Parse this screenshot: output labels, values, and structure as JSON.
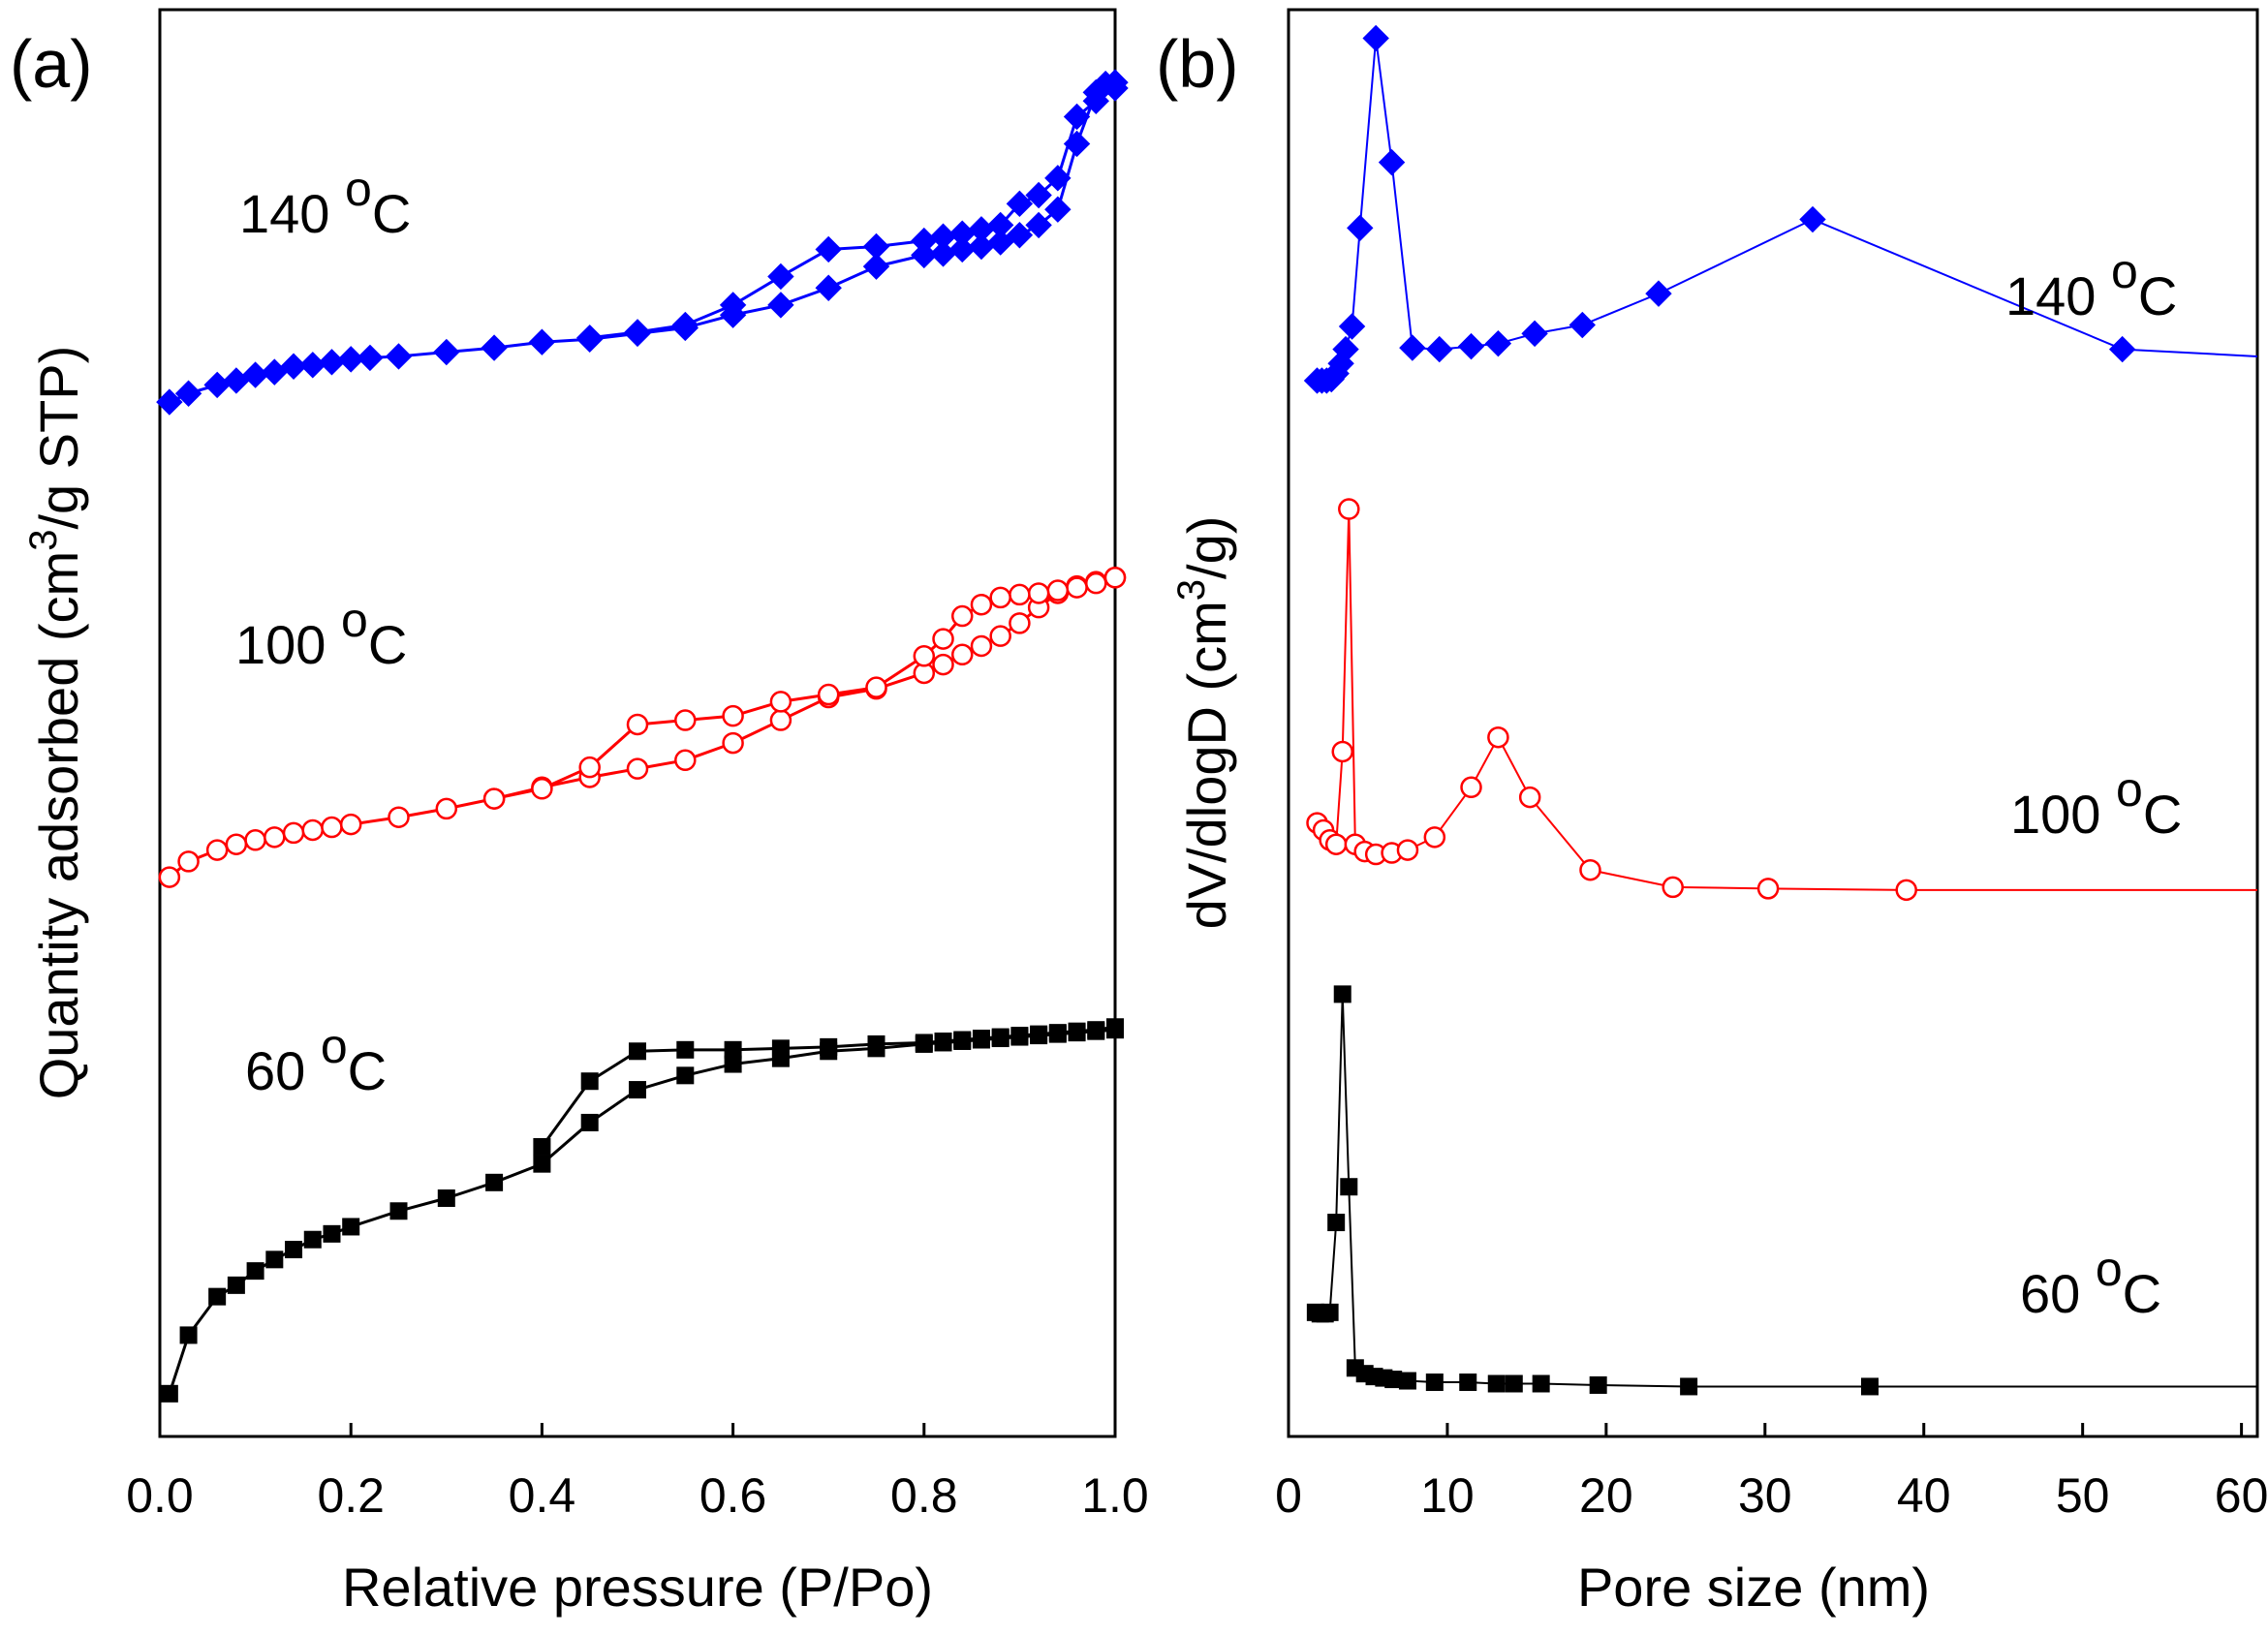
{
  "panels": [
    {
      "label": "(a)"
    },
    {
      "label": "(b)"
    }
  ],
  "series_labels": {
    "s140": {
      "value": "140 ",
      "sup": "o",
      "unit": "C"
    },
    "s100": {
      "value": "100 ",
      "sup": "o",
      "unit": "C"
    },
    "s60": {
      "value": "60 ",
      "sup": "o",
      "unit": "C"
    }
  },
  "chart_data": [
    {
      "type": "line",
      "xlabel": "Relative pressure (P/Po)",
      "ylabel": {
        "pre": "Quantity adsorbed (cm",
        "sup": "3",
        "post": "/g STP)"
      },
      "xlim": [
        0,
        1.0
      ],
      "ylim": [
        0,
        1000
      ],
      "xticks": [
        "0.0",
        "0.2",
        "0.4",
        "0.6",
        "0.8",
        "1.0"
      ],
      "xtick_values": [
        0,
        0.2,
        0.4,
        0.6,
        0.8,
        1.0
      ],
      "y_tick_labels": false,
      "grid": false,
      "series": [
        {
          "key": "s140",
          "color": "#0000ff",
          "marker": "diamond",
          "adsorption": [
            [
              0.01,
              725
            ],
            [
              0.03,
              731
            ],
            [
              0.06,
              737
            ],
            [
              0.08,
              740
            ],
            [
              0.1,
              744
            ],
            [
              0.12,
              746
            ],
            [
              0.14,
              750
            ],
            [
              0.16,
              751
            ],
            [
              0.18,
              753
            ],
            [
              0.2,
              755
            ],
            [
              0.22,
              756
            ],
            [
              0.25,
              757
            ],
            [
              0.3,
              760
            ],
            [
              0.35,
              763
            ],
            [
              0.4,
              767
            ],
            [
              0.45,
              769
            ],
            [
              0.5,
              773
            ],
            [
              0.55,
              777
            ],
            [
              0.6,
              786
            ],
            [
              0.65,
              793
            ],
            [
              0.7,
              805
            ],
            [
              0.75,
              820
            ],
            [
              0.8,
              828
            ],
            [
              0.82,
              829
            ],
            [
              0.84,
              832
            ],
            [
              0.86,
              834
            ],
            [
              0.88,
              837
            ],
            [
              0.9,
              842
            ],
            [
              0.92,
              849
            ],
            [
              0.94,
              860
            ],
            [
              0.96,
              906
            ],
            [
              0.98,
              942
            ],
            [
              0.99,
              948
            ],
            [
              1.0,
              949
            ]
          ],
          "desorption": [
            [
              1.0,
              945
            ],
            [
              0.98,
              936
            ],
            [
              0.96,
              925
            ],
            [
              0.94,
              882
            ],
            [
              0.92,
              870
            ],
            [
              0.9,
              864
            ],
            [
              0.88,
              849
            ],
            [
              0.86,
              846
            ],
            [
              0.84,
              843
            ],
            [
              0.82,
              841
            ],
            [
              0.8,
              838
            ],
            [
              0.75,
              834
            ],
            [
              0.7,
              832
            ],
            [
              0.65,
              813
            ],
            [
              0.6,
              793
            ],
            [
              0.55,
              779
            ],
            [
              0.5,
              774
            ],
            [
              0.45,
              770
            ]
          ]
        },
        {
          "key": "s100",
          "color": "#ff0000",
          "marker": "open-circle",
          "adsorption": [
            [
              0.01,
              392
            ],
            [
              0.03,
              403
            ],
            [
              0.06,
              411
            ],
            [
              0.08,
              415
            ],
            [
              0.1,
              418
            ],
            [
              0.12,
              420
            ],
            [
              0.14,
              423
            ],
            [
              0.16,
              425
            ],
            [
              0.18,
              427
            ],
            [
              0.2,
              429
            ],
            [
              0.25,
              434
            ],
            [
              0.3,
              440
            ],
            [
              0.35,
              447
            ],
            [
              0.4,
              455
            ],
            [
              0.45,
              462
            ],
            [
              0.5,
              468
            ],
            [
              0.55,
              474
            ],
            [
              0.6,
              486
            ],
            [
              0.65,
              502
            ],
            [
              0.7,
              518
            ],
            [
              0.75,
              524
            ],
            [
              0.8,
              535
            ],
            [
              0.82,
              541
            ],
            [
              0.84,
              548
            ],
            [
              0.86,
              554
            ],
            [
              0.88,
              561
            ],
            [
              0.9,
              570
            ],
            [
              0.92,
              581
            ],
            [
              0.94,
              591
            ],
            [
              0.96,
              596
            ],
            [
              0.98,
              599
            ],
            [
              1.0,
              602
            ]
          ],
          "desorption": [
            [
              1.0,
              602
            ],
            [
              0.98,
              598
            ],
            [
              0.96,
              595
            ],
            [
              0.94,
              593
            ],
            [
              0.92,
              591
            ],
            [
              0.9,
              590
            ],
            [
              0.88,
              588
            ],
            [
              0.86,
              583
            ],
            [
              0.84,
              575
            ],
            [
              0.82,
              559
            ],
            [
              0.8,
              547
            ],
            [
              0.75,
              525
            ],
            [
              0.7,
              520
            ],
            [
              0.65,
              515
            ],
            [
              0.6,
              505
            ],
            [
              0.55,
              502
            ],
            [
              0.5,
              499
            ],
            [
              0.45,
              469
            ],
            [
              0.4,
              454
            ],
            [
              0.35,
              447
            ]
          ]
        },
        {
          "key": "s60",
          "color": "#000000",
          "marker": "square",
          "adsorption": [
            [
              0.01,
              30
            ],
            [
              0.03,
              71
            ],
            [
              0.06,
              98
            ],
            [
              0.08,
              106
            ],
            [
              0.1,
              116
            ],
            [
              0.12,
              124
            ],
            [
              0.14,
              131
            ],
            [
              0.16,
              138
            ],
            [
              0.18,
              142
            ],
            [
              0.2,
              147
            ],
            [
              0.25,
              158
            ],
            [
              0.3,
              167
            ],
            [
              0.35,
              178
            ],
            [
              0.4,
              191
            ],
            [
              0.45,
              220
            ],
            [
              0.5,
              243
            ],
            [
              0.55,
              253
            ],
            [
              0.6,
              261
            ],
            [
              0.65,
              265
            ],
            [
              0.7,
              270
            ],
            [
              0.75,
              272
            ],
            [
              0.8,
              275
            ],
            [
              0.82,
              276
            ],
            [
              0.84,
              277
            ],
            [
              0.86,
              278
            ],
            [
              0.88,
              279
            ],
            [
              0.9,
              280
            ],
            [
              0.92,
              281
            ],
            [
              0.94,
              282
            ],
            [
              0.96,
              283
            ],
            [
              0.98,
              284
            ],
            [
              1.0,
              285
            ]
          ],
          "desorption": [
            [
              1.0,
              287
            ],
            [
              0.98,
              285
            ],
            [
              0.96,
              284
            ],
            [
              0.94,
              283
            ],
            [
              0.92,
              282
            ],
            [
              0.9,
              281
            ],
            [
              0.88,
              280
            ],
            [
              0.86,
              279
            ],
            [
              0.84,
              278
            ],
            [
              0.82,
              277
            ],
            [
              0.8,
              276
            ],
            [
              0.75,
              275
            ],
            [
              0.7,
              273
            ],
            [
              0.65,
              272
            ],
            [
              0.6,
              271
            ],
            [
              0.55,
              271
            ],
            [
              0.5,
              270
            ],
            [
              0.45,
              249
            ],
            [
              0.4,
              203
            ]
          ]
        }
      ]
    },
    {
      "type": "line",
      "xlabel": "Pore size (nm)",
      "ylabel": {
        "pre": "dV/dlogD (cm",
        "sup": "3",
        "post": "/g)"
      },
      "xlim": [
        0,
        61
      ],
      "ylim": [
        0,
        1000
      ],
      "xticks": [
        "0",
        "10",
        "20",
        "30",
        "40",
        "50",
        "60"
      ],
      "xtick_values": [
        0,
        10,
        20,
        30,
        40,
        50,
        60
      ],
      "y_tick_labels": false,
      "grid": false,
      "series": [
        {
          "key": "s140",
          "color": "#0000ff",
          "marker": "diamond",
          "points": [
            [
              1.8,
              740
            ],
            [
              2.1,
              740
            ],
            [
              2.4,
              740
            ],
            [
              2.7,
              741
            ],
            [
              3.0,
              745
            ],
            [
              3.3,
              752
            ],
            [
              3.6,
              762
            ],
            [
              4.0,
              778
            ],
            [
              4.5,
              847
            ],
            [
              5.5,
              980
            ],
            [
              6.5,
              893
            ],
            [
              7.8,
              763
            ],
            [
              9.5,
              762
            ],
            [
              11.5,
              764
            ],
            [
              13.2,
              766
            ],
            [
              15.5,
              773
            ],
            [
              18.5,
              779
            ],
            [
              23.3,
              801
            ],
            [
              33,
              853
            ],
            [
              52.5,
              762
            ],
            [
              61,
              757
            ]
          ]
        },
        {
          "key": "s100",
          "color": "#ff0000",
          "marker": "open-circle",
          "points": [
            [
              1.8,
              430
            ],
            [
              2.2,
              425
            ],
            [
              2.6,
              418
            ],
            [
              3.0,
              415
            ],
            [
              3.4,
              480
            ],
            [
              3.8,
              650
            ],
            [
              4.2,
              415
            ],
            [
              4.8,
              410
            ],
            [
              5.5,
              408
            ],
            [
              6.5,
              409
            ],
            [
              7.5,
              411
            ],
            [
              9.2,
              420
            ],
            [
              11.5,
              455
            ],
            [
              13.2,
              490
            ],
            [
              15.2,
              448
            ],
            [
              19.0,
              397
            ],
            [
              24.2,
              385
            ],
            [
              30.2,
              384
            ],
            [
              38.9,
              383
            ],
            [
              61,
              383
            ]
          ]
        },
        {
          "key": "s60",
          "color": "#000000",
          "marker": "square",
          "points": [
            [
              1.7,
              87
            ],
            [
              2.0,
              86
            ],
            [
              2.3,
              86
            ],
            [
              2.6,
              87
            ],
            [
              3.0,
              150
            ],
            [
              3.4,
              310
            ],
            [
              3.8,
              175
            ],
            [
              4.2,
              48
            ],
            [
              4.8,
              44
            ],
            [
              5.4,
              42
            ],
            [
              6.0,
              41
            ],
            [
              6.6,
              40
            ],
            [
              7.5,
              39
            ],
            [
              9.2,
              38
            ],
            [
              11.3,
              38
            ],
            [
              13.1,
              37
            ],
            [
              14.2,
              37
            ],
            [
              15.9,
              37
            ],
            [
              19.5,
              36
            ],
            [
              25.2,
              35
            ],
            [
              36.6,
              35
            ],
            [
              61,
              35
            ]
          ]
        }
      ]
    }
  ]
}
